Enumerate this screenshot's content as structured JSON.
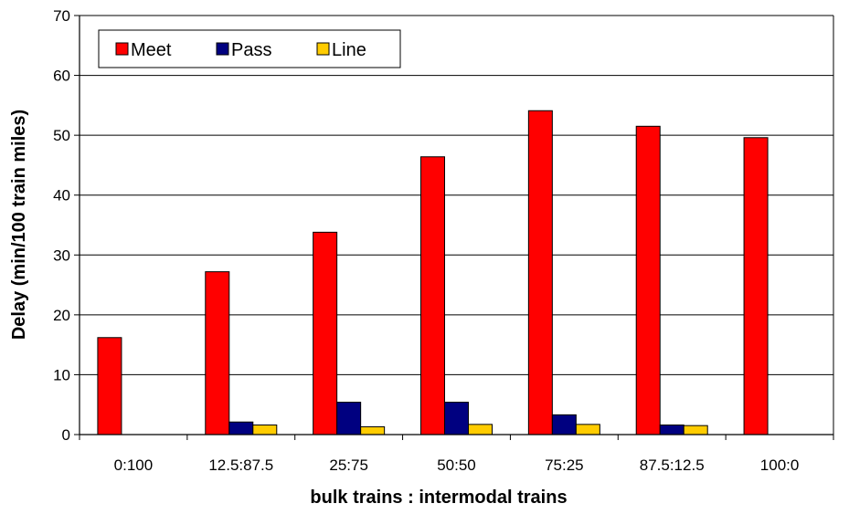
{
  "chart_data": {
    "type": "bar",
    "title": "",
    "xlabel": "bulk trains : intermodal trains",
    "ylabel": "Delay (min/100 train miles)",
    "categories": [
      "0:100",
      "12.5:87.5",
      "25:75",
      "50:50",
      "75:25",
      "87.5:12.5",
      "100:0"
    ],
    "series": [
      {
        "name": "Meet",
        "color": "#ff0000",
        "values": [
          16.2,
          27.2,
          33.8,
          46.4,
          54.1,
          51.5,
          49.6
        ]
      },
      {
        "name": "Pass",
        "color": "#000080",
        "values": [
          0,
          2.1,
          5.4,
          5.4,
          3.3,
          1.6,
          0
        ]
      },
      {
        "name": "Line",
        "color": "#ffcc00",
        "values": [
          0,
          1.6,
          1.3,
          1.7,
          1.7,
          1.5,
          0
        ]
      }
    ],
    "ylim": [
      0,
      70
    ],
    "yticks": [
      0,
      10,
      20,
      30,
      40,
      50,
      60,
      70
    ],
    "grid": true,
    "legend_position": "top-left"
  }
}
